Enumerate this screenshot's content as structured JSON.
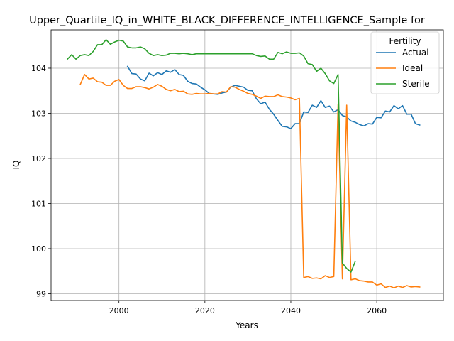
{
  "chart_data": {
    "type": "line",
    "title": "Upper_Quartile_IQ_in_WHITE_BLACK_DIFFERENCE_INTELLIGENCE_Sample for",
    "xlabel": "Years",
    "ylabel": "IQ",
    "xlim": [
      1984.2,
      2075.5
    ],
    "ylim": [
      98.85,
      104.85
    ],
    "xticks": [
      2000,
      2020,
      2040,
      2060
    ],
    "yticks": [
      99,
      100,
      101,
      102,
      103,
      104
    ],
    "grid": true,
    "legend": {
      "title": "Fertility",
      "placement": "top-right"
    },
    "colors": {
      "Actual": "#1f77b4",
      "Ideal": "#ff7f0e",
      "Sterile": "#2ca02c",
      "grid": "#b0b0b0"
    },
    "series": [
      {
        "name": "Actual",
        "x": [
          2002,
          2003,
          2004,
          2005,
          2006,
          2007,
          2008,
          2009,
          2010,
          2011,
          2012,
          2013,
          2014,
          2015,
          2016,
          2017,
          2018,
          2019,
          2020,
          2021,
          2022,
          2023,
          2024,
          2025,
          2026,
          2027,
          2028,
          2029,
          2030,
          2031,
          2032,
          2033,
          2034,
          2035,
          2036,
          2037,
          2038,
          2039,
          2040,
          2041,
          2042,
          2043,
          2044,
          2045,
          2046,
          2047,
          2048,
          2049,
          2050,
          2051,
          2052,
          2053,
          2054,
          2055,
          2056,
          2057,
          2058,
          2059,
          2060,
          2061,
          2062,
          2063,
          2064,
          2065,
          2066,
          2067,
          2068,
          2069,
          2070
        ],
        "y": [
          104.04,
          103.88,
          103.87,
          103.76,
          103.72,
          103.89,
          103.83,
          103.9,
          103.86,
          103.94,
          103.91,
          103.97,
          103.86,
          103.84,
          103.71,
          103.66,
          103.65,
          103.58,
          103.52,
          103.44,
          103.43,
          103.42,
          103.45,
          103.47,
          103.58,
          103.62,
          103.6,
          103.58,
          103.51,
          103.5,
          103.32,
          103.21,
          103.25,
          103.09,
          102.98,
          102.84,
          102.71,
          102.7,
          102.66,
          102.77,
          102.77,
          103.03,
          103.02,
          103.18,
          103.13,
          103.28,
          103.13,
          103.16,
          103.03,
          103.08,
          102.95,
          102.92,
          102.83,
          102.8,
          102.75,
          102.72,
          102.77,
          102.76,
          102.91,
          102.9,
          103.05,
          103.03,
          103.17,
          103.1,
          103.17,
          102.98,
          102.98,
          102.77,
          102.74
        ]
      },
      {
        "name": "Ideal",
        "x": [
          1991,
          1992,
          1993,
          1994,
          1995,
          1996,
          1997,
          1998,
          1999,
          2000,
          2001,
          2002,
          2003,
          2004,
          2005,
          2006,
          2007,
          2008,
          2009,
          2010,
          2011,
          2012,
          2013,
          2014,
          2015,
          2016,
          2017,
          2018,
          2019,
          2020,
          2021,
          2022,
          2023,
          2024,
          2025,
          2026,
          2027,
          2028,
          2029,
          2030,
          2031,
          2032,
          2033,
          2034,
          2035,
          2036,
          2037,
          2038,
          2039,
          2040,
          2041,
          2042,
          2043,
          2044,
          2045,
          2046,
          2047,
          2048,
          2049,
          2050,
          2051,
          2052,
          2053,
          2054,
          2055,
          2056,
          2057,
          2058,
          2059,
          2060,
          2061,
          2062,
          2063,
          2064,
          2065,
          2066,
          2067,
          2068,
          2069,
          2070
        ],
        "y": [
          103.64,
          103.86,
          103.76,
          103.78,
          103.7,
          103.69,
          103.62,
          103.62,
          103.71,
          103.75,
          103.62,
          103.55,
          103.55,
          103.59,
          103.59,
          103.57,
          103.54,
          103.58,
          103.64,
          103.6,
          103.53,
          103.5,
          103.53,
          103.48,
          103.49,
          103.43,
          103.42,
          103.44,
          103.43,
          103.43,
          103.44,
          103.43,
          103.43,
          103.48,
          103.47,
          103.59,
          103.58,
          103.53,
          103.49,
          103.44,
          103.42,
          103.38,
          103.33,
          103.38,
          103.37,
          103.37,
          103.41,
          103.37,
          103.36,
          103.34,
          103.3,
          103.33,
          99.36,
          99.38,
          99.34,
          99.35,
          99.33,
          99.4,
          99.36,
          99.38,
          103.2,
          99.33,
          103.18,
          99.31,
          99.33,
          99.29,
          99.28,
          99.26,
          99.26,
          99.19,
          99.22,
          99.14,
          99.17,
          99.13,
          99.17,
          99.14,
          99.18,
          99.15,
          99.16,
          99.15
        ]
      },
      {
        "name": "Sterile",
        "x": [
          1988,
          1989,
          1990,
          1991,
          1992,
          1993,
          1994,
          1995,
          1996,
          1997,
          1998,
          1999,
          2000,
          2001,
          2002,
          2003,
          2004,
          2005,
          2006,
          2007,
          2008,
          2009,
          2010,
          2011,
          2012,
          2013,
          2014,
          2015,
          2016,
          2017,
          2018,
          2019,
          2020,
          2021,
          2022,
          2023,
          2024,
          2025,
          2026,
          2027,
          2028,
          2029,
          2030,
          2031,
          2032,
          2033,
          2034,
          2035,
          2036,
          2037,
          2038,
          2039,
          2040,
          2041,
          2042,
          2043,
          2044,
          2045,
          2046,
          2047,
          2048,
          2049,
          2050,
          2051,
          2052,
          2053,
          2054,
          2055
        ],
        "y": [
          104.2,
          104.3,
          104.2,
          104.28,
          104.3,
          104.28,
          104.37,
          104.52,
          104.52,
          104.63,
          104.53,
          104.58,
          104.62,
          104.6,
          104.47,
          104.45,
          104.45,
          104.47,
          104.43,
          104.33,
          104.28,
          104.3,
          104.28,
          104.29,
          104.33,
          104.33,
          104.32,
          104.33,
          104.32,
          104.3,
          104.32,
          104.32,
          104.32,
          104.32,
          104.32,
          104.32,
          104.32,
          104.32,
          104.32,
          104.32,
          104.32,
          104.32,
          104.32,
          104.32,
          104.28,
          104.26,
          104.27,
          104.2,
          104.2,
          104.35,
          104.32,
          104.36,
          104.33,
          104.33,
          104.34,
          104.27,
          104.1,
          104.08,
          103.93,
          104.0,
          103.88,
          103.72,
          103.66,
          103.86,
          99.68,
          99.56,
          99.48,
          99.72
        ]
      }
    ]
  }
}
